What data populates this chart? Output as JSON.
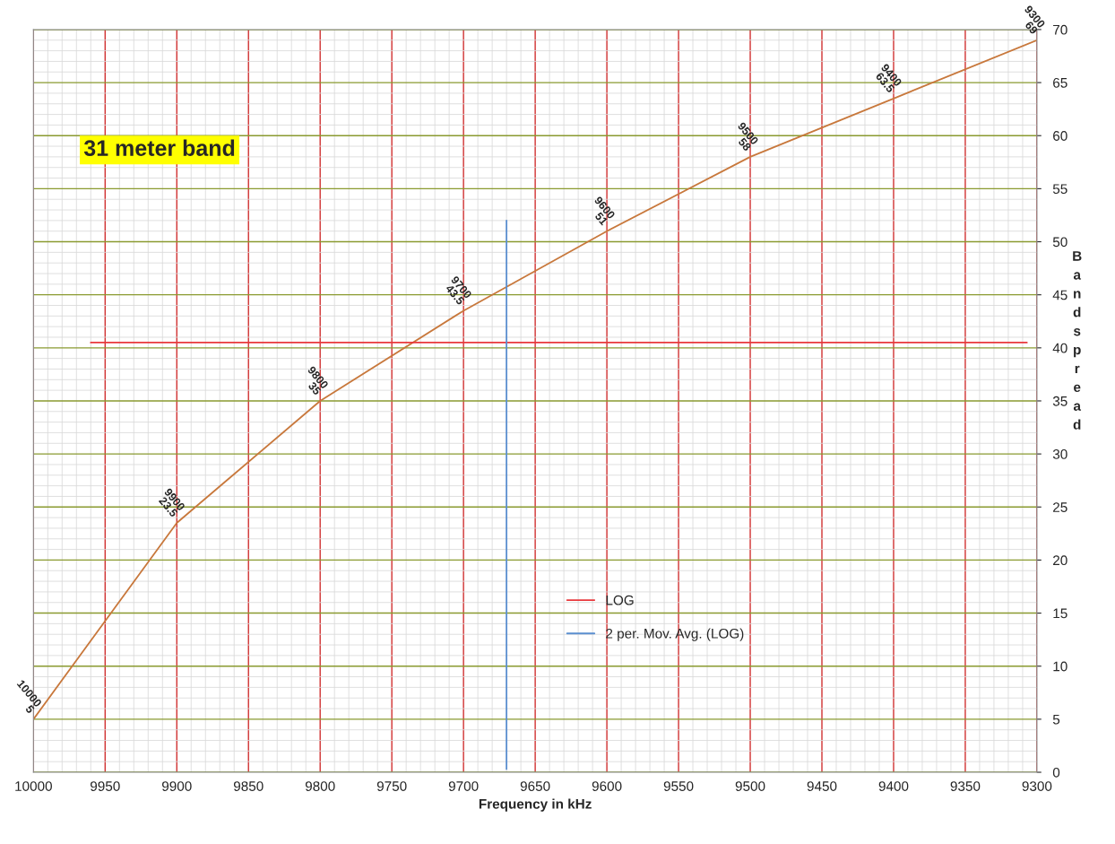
{
  "chart_data": {
    "type": "line",
    "xlabel": "Frequency in kHz",
    "ylabel": "Bandspread",
    "x": [
      10000,
      9900,
      9800,
      9700,
      9600,
      9500,
      9400,
      9300
    ],
    "series": [
      {
        "color": "#c8783c",
        "values": [
          5,
          23.5,
          35,
          43.5,
          51,
          58,
          63.5,
          69
        ],
        "value_labels": [
          "10000\n5",
          "9900\n23.5",
          "9800\n35",
          "9700\n43.5",
          "9600\n51",
          "9500\n58",
          "9400\n63.5",
          "9300\n69"
        ]
      },
      {
        "name": "LOG",
        "type": "line",
        "color": "#e8383c",
        "x": [
          9960,
          9307
        ],
        "values": [
          40.5,
          40.5
        ]
      },
      {
        "name": "2 per. Mov. Avg. (LOG)",
        "type": "line",
        "color": "#5b8fd0",
        "x": [
          9670,
          9670
        ],
        "values": [
          0.3,
          52
        ]
      }
    ],
    "xlim": [
      10000,
      9300
    ],
    "xticks": [
      10000,
      9950,
      9900,
      9850,
      9800,
      9750,
      9700,
      9650,
      9600,
      9550,
      9500,
      9450,
      9400,
      9350,
      9300
    ],
    "ylim": [
      0,
      70
    ],
    "yticks": [
      0,
      5,
      10,
      15,
      20,
      25,
      30,
      35,
      40,
      45,
      50,
      55,
      60,
      65,
      70
    ],
    "grid": true,
    "legend": "bottom",
    "annotations": [
      "31 meter band"
    ]
  }
}
